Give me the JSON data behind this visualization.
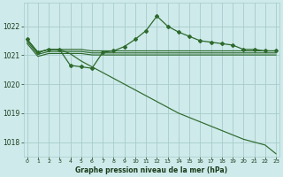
{
  "x": [
    0,
    1,
    2,
    3,
    4,
    5,
    6,
    7,
    8,
    9,
    10,
    11,
    12,
    13,
    14,
    15,
    16,
    17,
    18,
    19,
    20,
    21,
    22,
    23
  ],
  "line_nomarker_1": [
    1021.55,
    1021.1,
    1021.2,
    1021.2,
    1021.2,
    1021.2,
    1021.15,
    1021.15,
    1021.15,
    1021.15,
    1021.15,
    1021.15,
    1021.15,
    1021.15,
    1021.15,
    1021.15,
    1021.15,
    1021.15,
    1021.15,
    1021.15,
    1021.15,
    1021.15,
    1021.15,
    1021.15
  ],
  "line_nomarker_2": [
    1021.55,
    1021.1,
    1021.2,
    1021.2,
    1021.2,
    1021.2,
    1021.15,
    1021.15,
    1021.15,
    1021.15,
    1021.15,
    1021.15,
    1021.15,
    1021.15,
    1021.15,
    1021.15,
    1021.15,
    1021.15,
    1021.15,
    1021.15,
    1021.15,
    1021.15,
    1021.15,
    1021.15
  ],
  "line_nomarker_3": [
    1021.55,
    1021.1,
    1021.2,
    1021.2,
    1021.2,
    1021.2,
    1021.15,
    1021.15,
    1021.15,
    1021.15,
    1021.15,
    1021.15,
    1021.15,
    1021.15,
    1021.15,
    1021.15,
    1021.15,
    1021.15,
    1021.15,
    1021.15,
    1021.15,
    1021.15,
    1021.15,
    1021.15
  ],
  "line_marker_upper": [
    1021.55,
    1021.1,
    1021.2,
    1021.2,
    1020.65,
    1020.6,
    1020.55,
    1021.1,
    1021.15,
    1021.3,
    1021.55,
    1021.85,
    1022.35,
    1022.0,
    1021.8,
    1021.65,
    1021.5,
    1021.45,
    1021.4,
    1021.35,
    1021.2,
    1021.2,
    1021.15,
    1021.15
  ],
  "line_drop_nomarker": [
    1021.55,
    1021.1,
    1021.2,
    1021.2,
    1021.05,
    1020.8,
    1020.6,
    1020.4,
    1020.2,
    1020.0,
    1019.8,
    1019.6,
    1019.4,
    1019.2,
    1019.0,
    1018.85,
    1018.7,
    1018.55,
    1018.4,
    1018.25,
    1018.1,
    1018.0,
    1017.9,
    1017.6
  ],
  "xlim": [
    0,
    23
  ],
  "ylim": [
    1017.5,
    1022.8
  ],
  "yticks": [
    1018,
    1019,
    1020,
    1021,
    1022
  ],
  "xlabel": "Graphe pression niveau de la mer (hPa)",
  "bg_color": "#ceeaea",
  "grid_color": "#a8cccc",
  "line_color": "#2d6a2d"
}
